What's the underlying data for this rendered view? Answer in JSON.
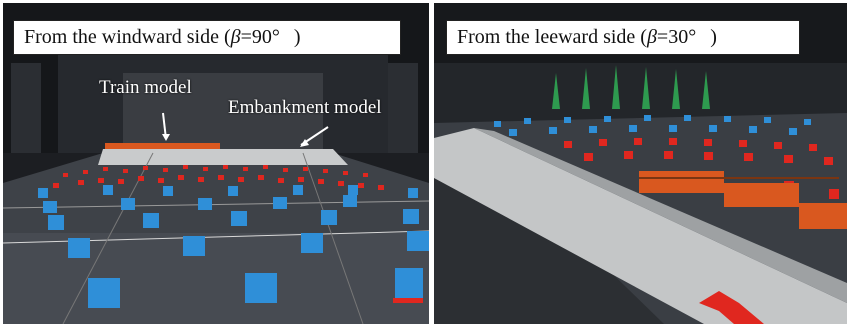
{
  "left_photo": {
    "caption_prefix": "From the windward side (",
    "caption_symbol": "β",
    "caption_value": "=90°",
    "caption_suffix": ")",
    "label_train": "Train model",
    "label_embankment": "Embankment model"
  },
  "right_photo": {
    "caption_prefix": "From the leeward side (",
    "caption_symbol": "β",
    "caption_value": "=30°",
    "caption_suffix": ")"
  },
  "colors": {
    "cube_blue": "#2f8fd8",
    "cube_red": "#e0271f",
    "floor": "#3b3f45",
    "tunnel_wall": "#1a1c1f",
    "embankment": "#c9cbcc",
    "train_orange": "#d9581f"
  }
}
